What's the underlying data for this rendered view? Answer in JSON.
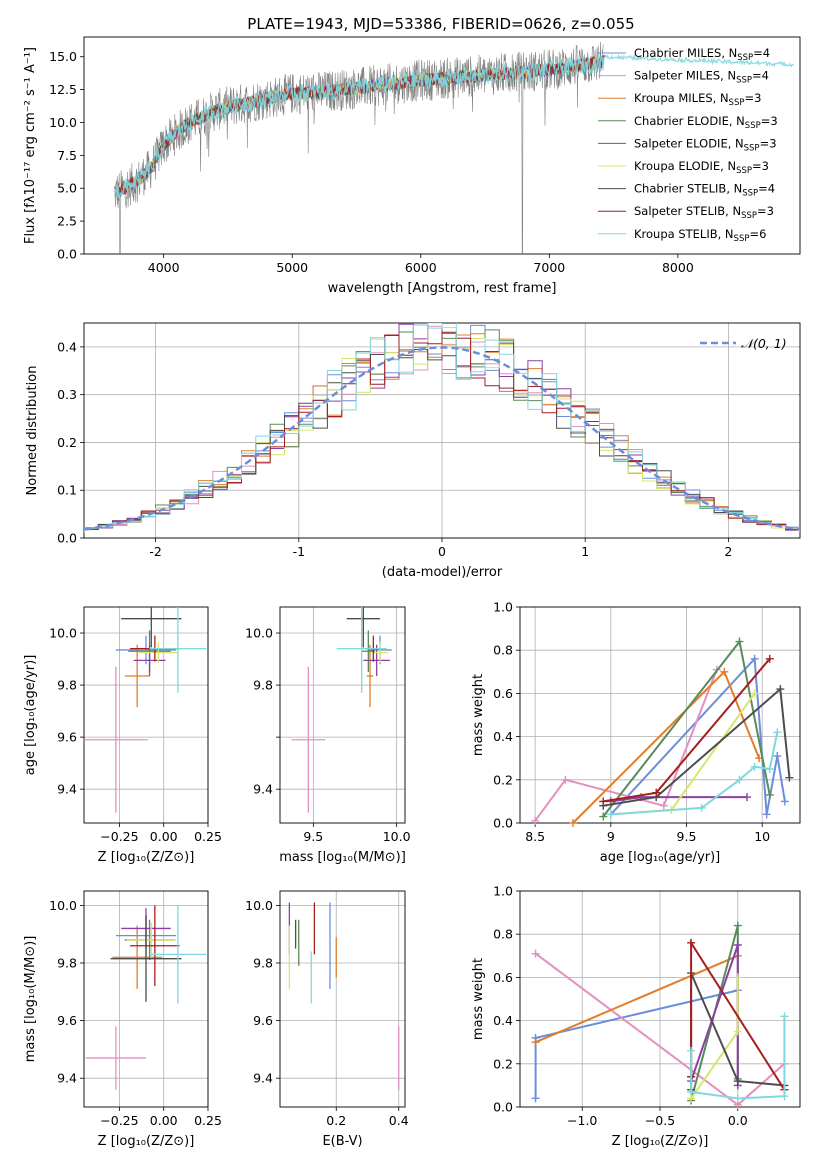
{
  "figure_title": "PLATE=1943, MJD=53386, FIBERID=0626, z=0.055",
  "colors": [
    "#6c8ddc",
    "#e58fc0",
    "#e07e2b",
    "#5a8a5a",
    "#8e3fa6",
    "#d7e66b",
    "#4d4d4d",
    "#a61f1f",
    "#7fd8e0"
  ],
  "chart_data": [
    {
      "id": "spectrum",
      "type": "line",
      "title": "PLATE=1943, MJD=53386, FIBERID=0626, z=0.055",
      "xlabel": "wavelength [Angstrom, rest frame]",
      "ylabel": "Flux [fλ10⁻¹⁷ erg cm⁻² s⁻¹ A⁻¹]",
      "xlim": [
        3380,
        8950
      ],
      "ylim": [
        0,
        16.5
      ],
      "xticks": [
        4000,
        5000,
        6000,
        7000,
        8000
      ],
      "yticks": [
        0.0,
        2.5,
        5.0,
        7.5,
        10.0,
        12.5,
        15.0
      ],
      "legend_position": "right",
      "legend": [
        {
          "name": "Chabrier MILES, N",
          "sub": "SSP",
          "tail": "=4"
        },
        {
          "name": "Salpeter MILES, N",
          "sub": "SSP",
          "tail": "=4"
        },
        {
          "name": "Kroupa MILES, N",
          "sub": "SSP",
          "tail": "=3"
        },
        {
          "name": "Chabrier ELODIE, N",
          "sub": "SSP",
          "tail": "=3"
        },
        {
          "name": "Salpeter ELODIE, N",
          "sub": "SSP",
          "tail": "=3"
        },
        {
          "name": "Kroupa ELODIE, N",
          "sub": "SSP",
          "tail": "=3"
        },
        {
          "name": "Chabrier STELIB, N",
          "sub": "SSP",
          "tail": "=4"
        },
        {
          "name": "Salpeter STELIB, N",
          "sub": "SSP",
          "tail": "=3"
        },
        {
          "name": "Kroupa STELIB, N",
          "sub": "SSP",
          "tail": "=6"
        }
      ],
      "data_color": "#7f7f7f",
      "continuum": {
        "x": [
          3620,
          3700,
          3800,
          3900,
          4000,
          4100,
          4200,
          4300,
          4400,
          4500,
          4700,
          5000,
          5200,
          5500,
          6000,
          6500,
          7000,
          7400,
          7800,
          8200,
          8600
        ],
        "y": [
          4.6,
          5.0,
          5.6,
          6.5,
          8.3,
          9.2,
          10.0,
          10.4,
          10.9,
          11.2,
          11.6,
          12.2,
          12.3,
          12.6,
          13.2,
          13.6,
          14.0,
          14.6,
          14.8,
          14.9,
          15.0
        ]
      }
    },
    {
      "id": "residuals",
      "type": "histogram",
      "xlabel": "(data-model)/error",
      "ylabel": "Normed distribution",
      "xlim": [
        -2.5,
        2.5
      ],
      "ylim": [
        0,
        0.45
      ],
      "xticks": [
        -2,
        -1,
        0,
        1,
        2
      ],
      "yticks": [
        0.0,
        0.1,
        0.2,
        0.3,
        0.4
      ],
      "legend_label": "𝒩(0, 1)",
      "legend_position": "top-right",
      "bin_width": 0.1
    },
    {
      "id": "age_vs_Z",
      "type": "errorbar",
      "xlabel": "Z [log₁₀(Z/Z⊙)]",
      "ylabel": "age  [log₁₀(age/yr)]",
      "xlim": [
        -0.45,
        0.25
      ],
      "ylim": [
        9.27,
        10.1
      ],
      "xticks": [
        -0.25,
        0.0,
        0.25
      ],
      "xticklabels": [
        "−0.25",
        "0.00",
        "0.25"
      ],
      "yticks": [
        9.4,
        9.6,
        9.8,
        10.0
      ],
      "points": [
        {
          "x": -0.1,
          "xerr": 0.17,
          "y": 9.935,
          "yerr": 0.055
        },
        {
          "x": -0.27,
          "xerr": 0.18,
          "y": 9.59,
          "yerr": 0.28
        },
        {
          "x": -0.15,
          "xerr": 0.07,
          "y": 9.835,
          "yerr": 0.12
        },
        {
          "x": -0.08,
          "xerr": 0.12,
          "y": 9.93,
          "yerr": 0.08
        },
        {
          "x": -0.08,
          "xerr": 0.09,
          "y": 9.895,
          "yerr": 0.06
        },
        {
          "x": -0.03,
          "xerr": 0.11,
          "y": 9.925,
          "yerr": 0.04
        },
        {
          "x": -0.07,
          "xerr": 0.17,
          "y": 10.055,
          "yerr": 0.11
        },
        {
          "x": -0.05,
          "xerr": 0.14,
          "y": 9.94,
          "yerr": 0.05
        },
        {
          "x": 0.08,
          "xerr": 0.16,
          "y": 9.94,
          "yerr": 0.17
        }
      ]
    },
    {
      "id": "age_vs_mass",
      "type": "errorbar",
      "xlabel": "mass [log₁₀(M/M⊙)]",
      "ylabel": "",
      "xlim": [
        9.3,
        10.05
      ],
      "ylim": [
        9.27,
        10.1
      ],
      "xticks": [
        9.5,
        10.0
      ],
      "xticklabels": [
        "9.5",
        "10.0"
      ],
      "yticks": [
        9.4,
        9.8,
        10.0
      ],
      "yticks_all": [
        9.4,
        9.6,
        9.8,
        10.0
      ],
      "points": [
        {
          "x": 9.9,
          "xerr": 0.07,
          "y": 9.935,
          "yerr": 0.055
        },
        {
          "x": 9.47,
          "xerr": 0.1,
          "y": 9.59,
          "yerr": 0.28
        },
        {
          "x": 9.84,
          "xerr": 0.02,
          "y": 9.835,
          "yerr": 0.12
        },
        {
          "x": 9.83,
          "xerr": 0.04,
          "y": 9.93,
          "yerr": 0.08
        },
        {
          "x": 9.88,
          "xerr": 0.08,
          "y": 9.895,
          "yerr": 0.06
        },
        {
          "x": 9.9,
          "xerr": 0.05,
          "y": 9.925,
          "yerr": 0.04
        },
        {
          "x": 9.8,
          "xerr": 0.1,
          "y": 10.055,
          "yerr": 0.11
        },
        {
          "x": 9.86,
          "xerr": 0.05,
          "y": 9.94,
          "yerr": 0.05
        },
        {
          "x": 9.79,
          "xerr": 0.15,
          "y": 9.94,
          "yerr": 0.17
        }
      ]
    },
    {
      "id": "weight_vs_age",
      "type": "line",
      "xlabel": "age  [log₁₀(age/yr)]",
      "ylabel": "mass weight",
      "xlim": [
        8.4,
        10.25
      ],
      "ylim": [
        0,
        1.0
      ],
      "xticks": [
        8.5,
        9.0,
        9.5,
        10.0
      ],
      "yticks": [
        0.0,
        0.2,
        0.4,
        0.6,
        0.8,
        1.0
      ],
      "series": [
        {
          "x": [
            9.0,
            9.95,
            10.03,
            10.1,
            10.15
          ],
          "y": [
            0.04,
            0.76,
            0.04,
            0.31,
            0.1
          ]
        },
        {
          "x": [
            8.5,
            8.7,
            9.35,
            9.7
          ],
          "y": [
            0.01,
            0.2,
            0.08,
            0.71
          ]
        },
        {
          "x": [
            8.75,
            9.75,
            9.98
          ],
          "y": [
            0.0,
            0.7,
            0.3
          ]
        },
        {
          "x": [
            8.95,
            9.85,
            10.05
          ],
          "y": [
            0.03,
            0.84,
            0.13
          ]
        },
        {
          "x": [
            9.0,
            9.2,
            9.9
          ],
          "y": [
            0.1,
            0.12,
            0.12
          ]
        },
        {
          "x": [
            9.0,
            9.4,
            9.95
          ],
          "y": [
            0.04,
            0.06,
            0.6
          ]
        },
        {
          "x": [
            8.95,
            9.3,
            10.12,
            10.18
          ],
          "y": [
            0.08,
            0.12,
            0.62,
            0.21
          ]
        },
        {
          "x": [
            8.95,
            9.3,
            10.05
          ],
          "y": [
            0.1,
            0.14,
            0.76
          ]
        },
        {
          "x": [
            9.0,
            9.6,
            9.85,
            9.95,
            10.05,
            10.1
          ],
          "y": [
            0.04,
            0.07,
            0.2,
            0.26,
            0.25,
            0.42
          ]
        }
      ]
    },
    {
      "id": "mass_vs_Z",
      "type": "errorbar",
      "xlabel": "Z [log₁₀(Z/Z⊙)]",
      "ylabel": "mass [log₁₀(M/M⊙)]",
      "xlim": [
        -0.45,
        0.25
      ],
      "ylim": [
        9.3,
        10.05
      ],
      "xticks": [
        -0.25,
        0.0,
        0.25
      ],
      "xticklabels": [
        "−0.25",
        "0.00",
        "0.25"
      ],
      "yticks": [
        9.4,
        9.6,
        9.8,
        10.0
      ],
      "points": [
        {
          "x": -0.1,
          "xerr": 0.17,
          "y": 9.895,
          "yerr": 0.07
        },
        {
          "x": -0.27,
          "xerr": 0.17,
          "y": 9.47,
          "yerr": 0.11
        },
        {
          "x": -0.15,
          "xerr": 0.14,
          "y": 9.82,
          "yerr": 0.11
        },
        {
          "x": -0.08,
          "xerr": 0.14,
          "y": 9.88,
          "yerr": 0.07
        },
        {
          "x": -0.1,
          "xerr": 0.14,
          "y": 9.92,
          "yerr": 0.07
        },
        {
          "x": -0.07,
          "xerr": 0.14,
          "y": 9.88,
          "yerr": 0.06
        },
        {
          "x": -0.1,
          "xerr": 0.2,
          "y": 9.815,
          "yerr": 0.15
        },
        {
          "x": -0.05,
          "xerr": 0.14,
          "y": 9.86,
          "yerr": 0.14
        },
        {
          "x": 0.08,
          "xerr": 0.16,
          "y": 9.83,
          "yerr": 0.17
        }
      ]
    },
    {
      "id": "mass_vs_EBV",
      "type": "errorbar",
      "xlabel": "E(B-V)",
      "ylabel": "",
      "xlim": [
        0.02,
        0.42
      ],
      "ylim": [
        9.3,
        10.05
      ],
      "xticks": [
        0.2,
        0.4
      ],
      "xticklabels": [
        "0.2",
        "0.4"
      ],
      "yticks": [
        9.4,
        9.6,
        9.8,
        10.0
      ],
      "points": [
        {
          "x": 0.18,
          "xerr": 0.0,
          "y": 9.86,
          "yerr": 0.15
        },
        {
          "x": 0.4,
          "xerr": 0.0,
          "y": 9.47,
          "yerr": 0.11
        },
        {
          "x": 0.2,
          "xerr": 0.0,
          "y": 9.82,
          "yerr": 0.07
        },
        {
          "x": 0.08,
          "xerr": 0.0,
          "y": 9.87,
          "yerr": 0.08
        },
        {
          "x": 0.05,
          "xerr": 0.0,
          "y": 9.92,
          "yerr": 0.09
        },
        {
          "x": 0.05,
          "xerr": 0.0,
          "y": 9.82,
          "yerr": 0.11
        },
        {
          "x": 0.07,
          "xerr": 0.0,
          "y": 9.9,
          "yerr": 0.05
        },
        {
          "x": 0.13,
          "xerr": 0.0,
          "y": 9.92,
          "yerr": 0.09
        },
        {
          "x": 0.12,
          "xerr": 0.0,
          "y": 9.75,
          "yerr": 0.09
        }
      ]
    },
    {
      "id": "weight_vs_Z",
      "type": "line",
      "xlabel": "Z [log₁₀(Z/Z⊙)]",
      "ylabel": "mass weight",
      "xlim": [
        -1.4,
        0.4
      ],
      "ylim": [
        0,
        1.0
      ],
      "xticks": [
        -1.0,
        -0.5,
        0.0
      ],
      "xticklabels": [
        "−1.0",
        "−0.5",
        "0.0"
      ],
      "yticks": [
        0.0,
        0.2,
        0.4,
        0.6,
        0.8,
        1.0
      ],
      "series": [
        {
          "x": [
            -1.3,
            -1.3,
            0.0
          ],
          "y": [
            0.04,
            0.32,
            0.54
          ]
        },
        {
          "x": [
            -1.3,
            0.0,
            0.3
          ],
          "y": [
            0.71,
            0.01,
            0.2
          ]
        },
        {
          "x": [
            -1.3,
            0.0
          ],
          "y": [
            0.3,
            0.7
          ]
        },
        {
          "x": [
            -0.3,
            0.0,
            0.0
          ],
          "y": [
            0.03,
            0.84,
            0.13
          ]
        },
        {
          "x": [
            -0.3,
            0.0,
            0.0
          ],
          "y": [
            0.12,
            0.75,
            0.1
          ]
        },
        {
          "x": [
            -0.3,
            0.0,
            0.0
          ],
          "y": [
            0.04,
            0.35,
            0.6
          ]
        },
        {
          "x": [
            -0.3,
            -0.3,
            0.0,
            0.3
          ],
          "y": [
            0.08,
            0.62,
            0.12,
            0.1
          ]
        },
        {
          "x": [
            -0.3,
            -0.3,
            0.3
          ],
          "y": [
            0.14,
            0.76,
            0.08
          ]
        },
        {
          "x": [
            -0.3,
            -0.3,
            0.0,
            0.3,
            0.3
          ],
          "y": [
            0.26,
            0.07,
            0.04,
            0.05,
            0.42
          ]
        }
      ]
    }
  ]
}
